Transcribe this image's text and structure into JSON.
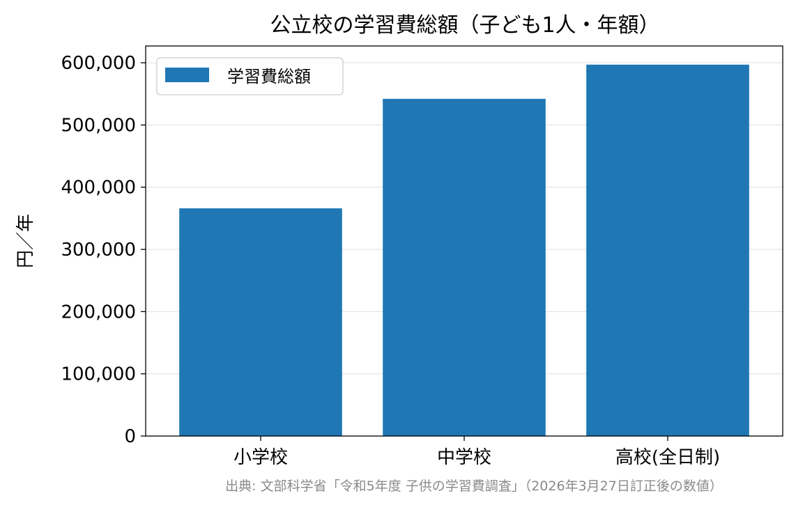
{
  "chart_data": {
    "type": "bar",
    "title": "公立校の学習費総額（子ども1人・年額）",
    "xlabel": "",
    "ylabel": "円／年",
    "categories": [
      "小学校",
      "中学校",
      "高校(全日制)"
    ],
    "series": [
      {
        "name": "学習費総額",
        "values": [
          366000,
          542000,
          597000
        ],
        "color": "#1f77b4"
      }
    ],
    "ylim": [
      0,
      627000
    ],
    "yticks": [
      0,
      100000,
      200000,
      300000,
      400000,
      500000,
      600000
    ],
    "ytick_labels": [
      "0",
      "100,000",
      "200,000",
      "300,000",
      "400,000",
      "500,000",
      "600,000"
    ],
    "grid": "horizontal",
    "grid_color": "#e6e6e6",
    "legend_position": "top-left",
    "source_note": "出典: 文部科学省「令和5年度 子供の学習費調査」（2026年3月27日訂正後の数値）"
  }
}
